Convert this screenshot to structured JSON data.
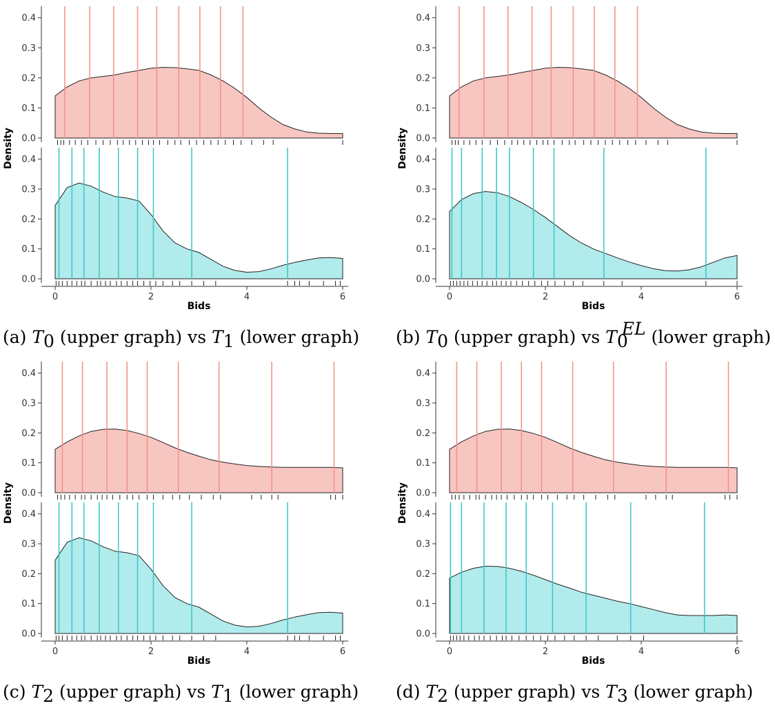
{
  "colors": {
    "upper_fill": "#f8c6c1",
    "upper_line": "#f4928a",
    "lower_fill": "#b2ebec",
    "lower_line": "#3fc8cb",
    "curve": "#222222",
    "axis": "#333333"
  },
  "chart_data": [
    {
      "type": "area",
      "caption": {
        "label": "(a)",
        "left": "T",
        "left_sub": "0",
        "mid": "(upper graph) vs",
        "right": "T",
        "right_sub": "1",
        "right_sup": "",
        "tail": "(lower graph)"
      },
      "xlabel": "Bids",
      "ylabel": "Density",
      "xlim": [
        0,
        6
      ],
      "ylim": [
        0,
        0.42
      ],
      "xticks": [
        0,
        2,
        4,
        6
      ],
      "yticks": [
        0.0,
        0.1,
        0.2,
        0.3,
        0.4
      ],
      "panels": [
        {
          "position": "upper",
          "density": {
            "x": [
              0,
              0.25,
              0.5,
              0.75,
              1,
              1.25,
              1.5,
              1.75,
              2,
              2.25,
              2.5,
              2.75,
              3,
              3.25,
              3.5,
              3.75,
              4,
              4.25,
              4.5,
              4.75,
              5,
              5.25,
              5.5,
              5.75,
              6
            ],
            "y": [
              0.14,
              0.17,
              0.19,
              0.2,
              0.205,
              0.21,
              0.218,
              0.225,
              0.232,
              0.235,
              0.234,
              0.23,
              0.225,
              0.21,
              0.19,
              0.165,
              0.135,
              0.1,
              0.07,
              0.045,
              0.03,
              0.02,
              0.016,
              0.015,
              0.015
            ]
          },
          "vlines": [
            0.2,
            0.72,
            1.22,
            1.72,
            2.12,
            2.58,
            3.02,
            3.45,
            3.92
          ],
          "rug": [
            0.05,
            0.12,
            0.18,
            0.3,
            0.42,
            0.55,
            0.68,
            0.85,
            1.0,
            1.15,
            1.3,
            1.42,
            1.55,
            1.68,
            1.82,
            1.95,
            2.05,
            2.18,
            2.35,
            2.5,
            2.62,
            2.8,
            2.95,
            3.1,
            3.25,
            3.4,
            3.55,
            3.72,
            3.88,
            4.1,
            4.35,
            4.55,
            6.0
          ]
        },
        {
          "position": "lower",
          "density": {
            "x": [
              0,
              0.25,
              0.5,
              0.75,
              1,
              1.25,
              1.5,
              1.75,
              2,
              2.25,
              2.5,
              2.75,
              3,
              3.25,
              3.5,
              3.75,
              4,
              4.25,
              4.5,
              4.75,
              5,
              5.25,
              5.5,
              5.75,
              6
            ],
            "y": [
              0.245,
              0.305,
              0.32,
              0.31,
              0.29,
              0.275,
              0.27,
              0.26,
              0.215,
              0.16,
              0.12,
              0.1,
              0.088,
              0.065,
              0.042,
              0.028,
              0.022,
              0.024,
              0.033,
              0.045,
              0.055,
              0.063,
              0.07,
              0.071,
              0.068
            ]
          },
          "vlines": [
            0.08,
            0.35,
            0.6,
            0.92,
            1.32,
            1.72,
            2.05,
            2.85,
            4.85
          ],
          "rug": [
            0.02,
            0.08,
            0.15,
            0.25,
            0.35,
            0.45,
            0.55,
            0.62,
            0.75,
            0.88,
            0.95,
            1.05,
            1.15,
            1.28,
            1.38,
            1.5,
            1.62,
            1.72,
            1.85,
            1.98,
            2.1,
            2.25,
            2.45,
            2.6,
            2.85,
            3.1,
            3.35,
            4.85,
            5.0,
            5.1,
            5.3,
            5.6,
            5.85,
            5.95
          ]
        }
      ]
    },
    {
      "type": "area",
      "caption": {
        "label": "(b)",
        "left": "T",
        "left_sub": "0",
        "mid": "(upper graph) vs",
        "right": "T",
        "right_sub": "0",
        "right_sup": "EL",
        "tail": "(lower graph)"
      },
      "xlabel": "Bids",
      "ylabel": "Density",
      "xlim": [
        0,
        6
      ],
      "ylim": [
        0,
        0.42
      ],
      "xticks": [
        0,
        2,
        4,
        6
      ],
      "yticks": [
        0.0,
        0.1,
        0.2,
        0.3,
        0.4
      ],
      "panels": [
        {
          "position": "upper",
          "density": {
            "x": [
              0,
              0.25,
              0.5,
              0.75,
              1,
              1.25,
              1.5,
              1.75,
              2,
              2.25,
              2.5,
              2.75,
              3,
              3.25,
              3.5,
              3.75,
              4,
              4.25,
              4.5,
              4.75,
              5,
              5.25,
              5.5,
              5.75,
              6
            ],
            "y": [
              0.14,
              0.17,
              0.19,
              0.2,
              0.205,
              0.21,
              0.218,
              0.225,
              0.232,
              0.235,
              0.234,
              0.23,
              0.225,
              0.21,
              0.19,
              0.165,
              0.135,
              0.1,
              0.07,
              0.045,
              0.03,
              0.02,
              0.016,
              0.015,
              0.015
            ]
          },
          "vlines": [
            0.2,
            0.72,
            1.22,
            1.72,
            2.12,
            2.58,
            3.02,
            3.45,
            3.92
          ],
          "rug": [
            0.05,
            0.12,
            0.18,
            0.3,
            0.42,
            0.55,
            0.68,
            0.85,
            1.0,
            1.15,
            1.3,
            1.42,
            1.55,
            1.68,
            1.82,
            1.95,
            2.05,
            2.18,
            2.35,
            2.5,
            2.62,
            2.8,
            2.95,
            3.1,
            3.25,
            3.4,
            3.55,
            3.72,
            3.88,
            4.1,
            4.35,
            4.55,
            6.0
          ]
        },
        {
          "position": "lower",
          "density": {
            "x": [
              0,
              0.25,
              0.5,
              0.75,
              1,
              1.25,
              1.5,
              1.75,
              2,
              2.25,
              2.5,
              2.75,
              3,
              3.25,
              3.5,
              3.75,
              4,
              4.25,
              4.5,
              4.75,
              5,
              5.25,
              5.5,
              5.75,
              6
            ],
            "y": [
              0.225,
              0.265,
              0.285,
              0.292,
              0.288,
              0.275,
              0.255,
              0.232,
              0.205,
              0.175,
              0.145,
              0.12,
              0.1,
              0.085,
              0.07,
              0.056,
              0.044,
              0.034,
              0.027,
              0.026,
              0.03,
              0.04,
              0.055,
              0.07,
              0.078
            ]
          },
          "vlines": [
            0.05,
            0.25,
            0.68,
            0.98,
            1.25,
            1.75,
            2.18,
            3.22,
            5.35
          ],
          "rug": [
            0.02,
            0.08,
            0.15,
            0.22,
            0.3,
            0.38,
            0.48,
            0.58,
            0.68,
            0.78,
            0.9,
            0.98,
            1.08,
            1.18,
            1.28,
            1.4,
            1.52,
            1.65,
            1.78,
            1.92,
            2.05,
            2.2,
            2.4,
            2.58,
            2.78,
            3.22,
            3.6,
            5.35,
            6.0
          ]
        }
      ]
    },
    {
      "type": "area",
      "caption": {
        "label": "(c)",
        "left": "T",
        "left_sub": "2",
        "mid": "(upper graph) vs",
        "right": "T",
        "right_sub": "1",
        "right_sup": "",
        "tail": "(lower graph)"
      },
      "xlabel": "Bids",
      "ylabel": "Density",
      "xlim": [
        0,
        6
      ],
      "ylim": [
        0,
        0.42
      ],
      "xticks": [
        0,
        2,
        4,
        6
      ],
      "yticks": [
        0.0,
        0.1,
        0.2,
        0.3,
        0.4
      ],
      "panels": [
        {
          "position": "upper",
          "density": {
            "x": [
              0,
              0.25,
              0.5,
              0.75,
              1,
              1.25,
              1.5,
              1.75,
              2,
              2.25,
              2.5,
              2.75,
              3,
              3.25,
              3.5,
              3.75,
              4,
              4.25,
              4.5,
              4.75,
              5,
              5.25,
              5.5,
              5.75,
              6
            ],
            "y": [
              0.145,
              0.17,
              0.19,
              0.205,
              0.212,
              0.213,
              0.208,
              0.198,
              0.185,
              0.168,
              0.15,
              0.135,
              0.122,
              0.11,
              0.102,
              0.096,
              0.091,
              0.088,
              0.086,
              0.085,
              0.085,
              0.085,
              0.085,
              0.085,
              0.083
            ]
          },
          "vlines": [
            0.15,
            0.57,
            1.08,
            1.5,
            1.92,
            2.57,
            3.42,
            4.52,
            5.82
          ],
          "rug": [
            0.05,
            0.12,
            0.2,
            0.3,
            0.42,
            0.55,
            0.62,
            0.75,
            0.88,
            0.98,
            1.08,
            1.2,
            1.35,
            1.5,
            1.62,
            1.75,
            1.92,
            2.05,
            2.25,
            2.45,
            2.6,
            2.8,
            3.05,
            3.3,
            3.45,
            4.1,
            4.3,
            4.52,
            4.65,
            5.75,
            5.85,
            6.0
          ]
        },
        {
          "position": "lower",
          "density": {
            "x": [
              0,
              0.25,
              0.5,
              0.75,
              1,
              1.25,
              1.5,
              1.75,
              2,
              2.25,
              2.5,
              2.75,
              3,
              3.25,
              3.5,
              3.75,
              4,
              4.25,
              4.5,
              4.75,
              5,
              5.25,
              5.5,
              5.75,
              6
            ],
            "y": [
              0.245,
              0.305,
              0.32,
              0.31,
              0.29,
              0.275,
              0.27,
              0.26,
              0.215,
              0.16,
              0.12,
              0.1,
              0.088,
              0.065,
              0.042,
              0.028,
              0.022,
              0.024,
              0.033,
              0.045,
              0.055,
              0.063,
              0.07,
              0.071,
              0.068
            ]
          },
          "vlines": [
            0.08,
            0.35,
            0.6,
            0.92,
            1.32,
            1.72,
            2.05,
            2.85,
            4.85
          ],
          "rug": [
            0.02,
            0.08,
            0.15,
            0.25,
            0.35,
            0.45,
            0.55,
            0.62,
            0.75,
            0.88,
            0.95,
            1.05,
            1.15,
            1.28,
            1.38,
            1.5,
            1.62,
            1.72,
            1.85,
            1.98,
            2.1,
            2.25,
            2.45,
            2.6,
            2.85,
            3.1,
            3.35,
            4.85,
            5.0,
            5.1,
            5.3,
            5.6,
            5.85,
            5.95
          ]
        }
      ]
    },
    {
      "type": "area",
      "caption": {
        "label": "(d)",
        "left": "T",
        "left_sub": "2",
        "mid": "(upper graph) vs",
        "right": "T",
        "right_sub": "3",
        "right_sup": "",
        "tail": "(lower graph)"
      },
      "xlabel": "Bids",
      "ylabel": "Density",
      "xlim": [
        0,
        6
      ],
      "ylim": [
        0,
        0.42
      ],
      "xticks": [
        0,
        2,
        4,
        6
      ],
      "yticks": [
        0.0,
        0.1,
        0.2,
        0.3,
        0.4
      ],
      "panels": [
        {
          "position": "upper",
          "density": {
            "x": [
              0,
              0.25,
              0.5,
              0.75,
              1,
              1.25,
              1.5,
              1.75,
              2,
              2.25,
              2.5,
              2.75,
              3,
              3.25,
              3.5,
              3.75,
              4,
              4.25,
              4.5,
              4.75,
              5,
              5.25,
              5.5,
              5.75,
              6
            ],
            "y": [
              0.145,
              0.17,
              0.19,
              0.205,
              0.212,
              0.213,
              0.208,
              0.198,
              0.185,
              0.168,
              0.15,
              0.135,
              0.122,
              0.11,
              0.102,
              0.096,
              0.091,
              0.088,
              0.086,
              0.085,
              0.085,
              0.085,
              0.085,
              0.085,
              0.083
            ]
          },
          "vlines": [
            0.15,
            0.57,
            1.08,
            1.5,
            1.92,
            2.57,
            3.42,
            4.52,
            5.82
          ],
          "rug": [
            0.05,
            0.12,
            0.2,
            0.3,
            0.42,
            0.55,
            0.62,
            0.75,
            0.88,
            0.98,
            1.08,
            1.2,
            1.35,
            1.5,
            1.62,
            1.75,
            1.92,
            2.05,
            2.25,
            2.45,
            2.6,
            2.8,
            3.05,
            3.3,
            3.45,
            4.1,
            4.3,
            4.52,
            4.65,
            5.75,
            5.85,
            6.0
          ]
        },
        {
          "position": "lower",
          "density": {
            "x": [
              0,
              0.25,
              0.5,
              0.75,
              1,
              1.25,
              1.5,
              1.75,
              2,
              2.25,
              2.5,
              2.75,
              3,
              3.25,
              3.5,
              3.75,
              4,
              4.25,
              4.5,
              4.75,
              5,
              5.25,
              5.5,
              5.75,
              6
            ],
            "y": [
              0.185,
              0.205,
              0.218,
              0.225,
              0.224,
              0.218,
              0.208,
              0.195,
              0.18,
              0.165,
              0.152,
              0.138,
              0.128,
              0.118,
              0.108,
              0.1,
              0.09,
              0.08,
              0.07,
              0.062,
              0.06,
              0.06,
              0.06,
              0.062,
              0.06
            ]
          },
          "vlines": [
            0.02,
            0.25,
            0.72,
            1.18,
            1.6,
            2.15,
            2.85,
            3.78,
            5.32
          ],
          "rug": [
            0.02,
            0.08,
            0.15,
            0.22,
            0.3,
            0.4,
            0.52,
            0.62,
            0.72,
            0.85,
            0.98,
            1.1,
            1.18,
            1.3,
            1.45,
            1.6,
            1.75,
            1.9,
            2.05,
            2.2,
            2.4,
            2.6,
            2.85,
            3.1,
            3.5,
            3.78,
            4.05,
            6.0
          ]
        }
      ]
    }
  ]
}
